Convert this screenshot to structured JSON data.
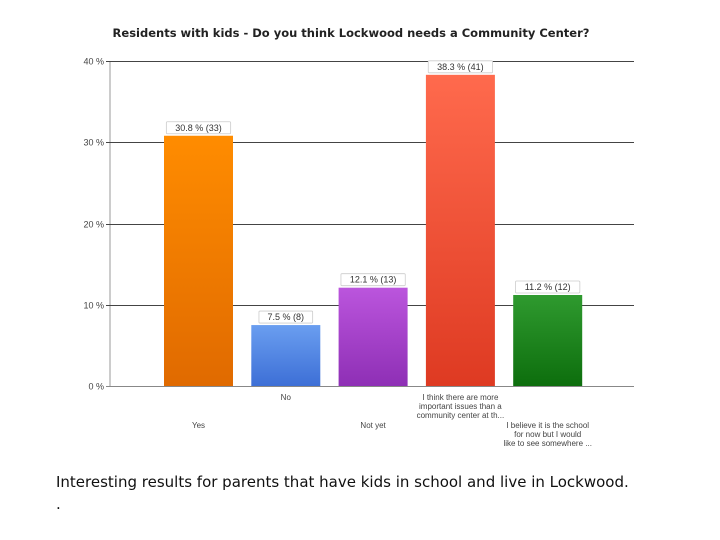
{
  "chart_data": {
    "type": "bar",
    "title": "Residents with kids - Do you think Lockwood needs a Community Center?",
    "categories": [
      "Yes",
      "No",
      "Not yet",
      "I think there are more important issues than a community center at th...",
      "I believe it is the school for now but I would like to see somewhere ..."
    ],
    "category_lines": [
      [
        "Yes"
      ],
      [
        "No"
      ],
      [
        "Not yet"
      ],
      [
        "I think there are more",
        "important issues than a",
        "community center at th..."
      ],
      [
        "I believe it is the school",
        "for now but I would",
        "like to see somewhere ..."
      ]
    ],
    "values": [
      30.8,
      7.5,
      12.1,
      38.3,
      11.2
    ],
    "counts": [
      33,
      8,
      13,
      41,
      12
    ],
    "data_labels": [
      "30.8 % (33)",
      "7.5 % (8)",
      "12.1 % (13)",
      "38.3 % (41)",
      "11.2 % (12)"
    ],
    "colors": [
      [
        "#ff8c00",
        "#e06a00"
      ],
      [
        "#6a9ef0",
        "#3d6fd6"
      ],
      [
        "#bb55dd",
        "#8e2fb5"
      ],
      [
        "#ff6a4d",
        "#de3a22"
      ],
      [
        "#2f9a2f",
        "#0d6e0d"
      ]
    ],
    "y_ticks": [
      "0 %",
      "10 %",
      "20 %",
      "30 %",
      "40 %"
    ],
    "y_tick_values": [
      0,
      10,
      20,
      30,
      40
    ],
    "ylim": [
      0,
      40
    ],
    "grid": true
  },
  "caption": {
    "line1": "Interesting results for parents that have kids in school and live in Lockwood.",
    "line2": "."
  }
}
